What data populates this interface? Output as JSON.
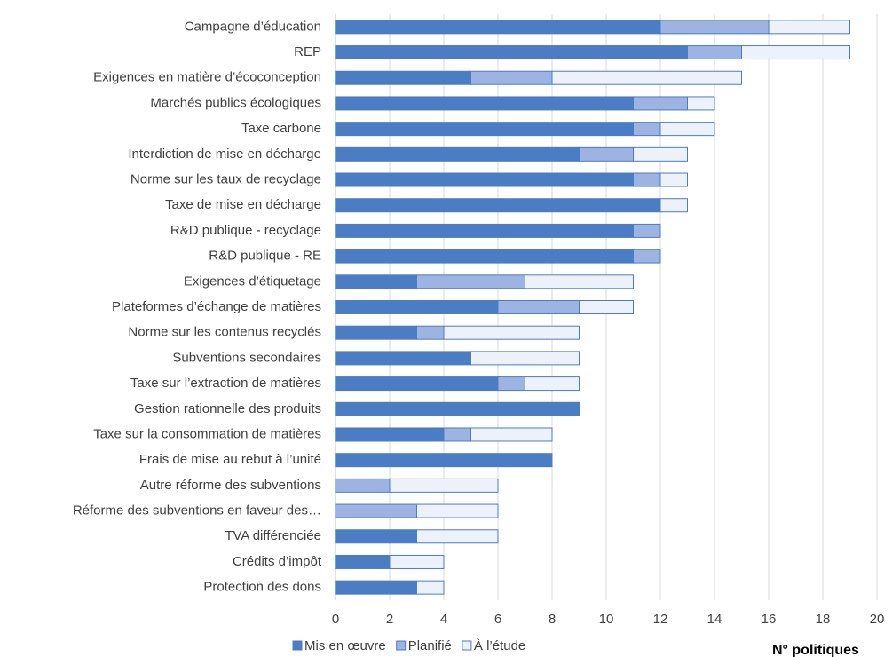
{
  "chart_data": {
    "type": "stacked_barh",
    "categories": [
      "Campagne d’éducation",
      "REP",
      "Exigences en matière d’écoconception",
      "Marchés publics écologiques",
      "Taxe carbone",
      "Interdiction de mise en décharge",
      "Norme sur les taux de recyclage",
      "Taxe de mise en décharge",
      "R&D publique - recyclage",
      "R&D publique - RE",
      "Exigences d’étiquetage",
      "Plateformes d’échange de matières",
      "Norme sur les contenus recyclés",
      "Subventions secondaires",
      "Taxe sur l’extraction de matières",
      "Gestion rationnelle des produits",
      "Taxe sur la consommation de matières",
      "Frais de mise au rebut à l’unité",
      "Autre réforme des subventions",
      "Réforme des subventions en faveur des…",
      "TVA différenciée",
      "Crédits d’impôt",
      "Protection des dons"
    ],
    "series": [
      {
        "name": "Mis en œuvre",
        "color": "#4a7dc4",
        "values": [
          12,
          13,
          5,
          11,
          11,
          9,
          11,
          12,
          11,
          11,
          3,
          6,
          3,
          5,
          6,
          9,
          4,
          8,
          0,
          0,
          3,
          2,
          3
        ]
      },
      {
        "name": "Planifié",
        "color": "#9db3e1",
        "values": [
          4,
          2,
          3,
          2,
          1,
          2,
          1,
          0,
          1,
          1,
          4,
          3,
          1,
          0,
          1,
          0,
          1,
          0,
          2,
          3,
          0,
          0,
          0
        ]
      },
      {
        "name": "À l’étude",
        "color": "#edf1fa",
        "values": [
          3,
          4,
          7,
          1,
          2,
          2,
          1,
          1,
          0,
          0,
          4,
          2,
          5,
          4,
          2,
          0,
          3,
          0,
          4,
          3,
          3,
          2,
          1
        ]
      }
    ],
    "xlabel": "N° politiques",
    "xlim": [
      0,
      20
    ],
    "xticks": [
      0,
      2,
      4,
      6,
      8,
      10,
      12,
      14,
      16,
      18,
      20
    ],
    "grid": true
  }
}
